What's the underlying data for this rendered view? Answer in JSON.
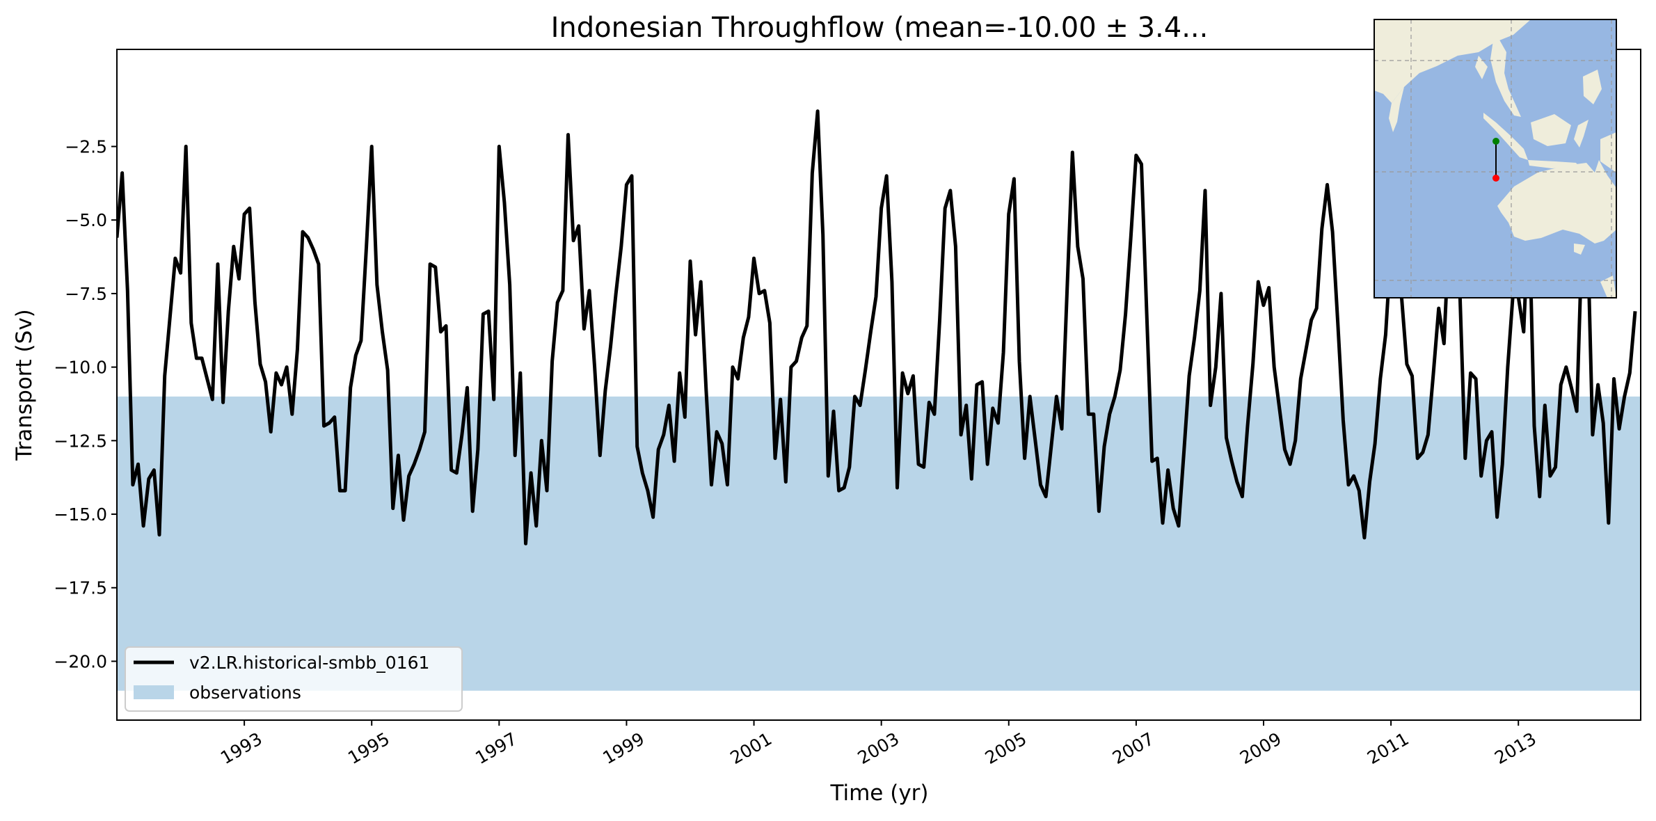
{
  "chart_data": {
    "type": "line",
    "title": "Indonesian Throughflow (mean=-10.00 ± 3.4...",
    "xlabel": "Time (yr)",
    "ylabel": "Transport (Sv)",
    "xlim": [
      1991.0,
      2014.92
    ],
    "ylim": [
      -22.0,
      0.8
    ],
    "x_ticks": [
      1993,
      1995,
      1997,
      1999,
      2001,
      2003,
      2005,
      2007,
      2009,
      2011,
      2013
    ],
    "x_tick_labels": [
      "1993",
      "1995",
      "1997",
      "1999",
      "2001",
      "2003",
      "2005",
      "2007",
      "2009",
      "2011",
      "2013"
    ],
    "y_ticks": [
      -2.5,
      -5.0,
      -7.5,
      -10.0,
      -12.5,
      -15.0,
      -17.5,
      -20.0
    ],
    "y_tick_labels": [
      "−2.5",
      "−5.0",
      "−7.5",
      "−10.0",
      "−12.5",
      "−15.0",
      "−17.5",
      "−20.0"
    ],
    "grid": false,
    "legend_position": "lower-left",
    "series": [
      {
        "name": "v2.LR.historical-smbb_0161",
        "type": "line",
        "color": "#000000",
        "x_start": 1991.0,
        "x_step": 0.08333,
        "values": [
          -5.6,
          -3.4,
          -7.4,
          -14.0,
          -13.3,
          -15.4,
          -13.8,
          -13.5,
          -15.7,
          -10.3,
          -8.3,
          -6.3,
          -6.8,
          -2.5,
          -8.5,
          -9.7,
          -9.7,
          -10.4,
          -11.1,
          -6.5,
          -11.2,
          -8.1,
          -5.9,
          -7.0,
          -4.8,
          -4.6,
          -7.8,
          -9.9,
          -10.5,
          -12.2,
          -10.2,
          -10.6,
          -10.0,
          -11.6,
          -9.4,
          -5.4,
          -5.6,
          -6.0,
          -6.5,
          -12.0,
          -11.9,
          -11.7,
          -14.2,
          -14.2,
          -10.7,
          -9.6,
          -9.1,
          -5.9,
          -2.5,
          -7.2,
          -8.8,
          -10.1,
          -14.8,
          -13.0,
          -15.2,
          -13.7,
          -13.3,
          -12.8,
          -12.2,
          -6.5,
          -6.6,
          -8.8,
          -8.6,
          -13.5,
          -13.6,
          -12.3,
          -10.7,
          -14.9,
          -12.8,
          -8.2,
          -8.1,
          -11.1,
          -2.5,
          -4.4,
          -7.2,
          -13.0,
          -10.2,
          -16.0,
          -13.6,
          -15.4,
          -12.5,
          -14.2,
          -9.8,
          -7.8,
          -7.4,
          -2.1,
          -5.7,
          -5.2,
          -8.7,
          -7.4,
          -10.0,
          -13.0,
          -10.8,
          -9.3,
          -7.5,
          -5.9,
          -3.8,
          -3.5,
          -12.7,
          -13.6,
          -14.2,
          -15.1,
          -12.8,
          -12.3,
          -11.3,
          -13.2,
          -10.2,
          -11.7,
          -6.4,
          -8.9,
          -7.1,
          -10.8,
          -14.0,
          -12.2,
          -12.6,
          -14.0,
          -10.0,
          -10.4,
          -9.0,
          -8.3,
          -6.3,
          -7.5,
          -7.4,
          -8.5,
          -13.1,
          -11.1,
          -13.9,
          -10.0,
          -9.8,
          -9.0,
          -8.6,
          -3.4,
          -1.3,
          -5.5,
          -13.7,
          -11.5,
          -14.2,
          -14.1,
          -13.4,
          -11.0,
          -11.3,
          -10.1,
          -8.8,
          -7.6,
          -4.6,
          -3.5,
          -7.1,
          -14.1,
          -10.2,
          -10.9,
          -10.3,
          -13.3,
          -13.4,
          -11.2,
          -11.6,
          -8.4,
          -4.6,
          -4.0,
          -5.9,
          -12.3,
          -11.3,
          -13.8,
          -10.6,
          -10.5,
          -13.3,
          -11.4,
          -11.9,
          -9.5,
          -4.8,
          -3.6,
          -9.8,
          -13.1,
          -11.0,
          -12.5,
          -14.0,
          -14.4,
          -12.7,
          -11.0,
          -12.1,
          -7.4,
          -2.7,
          -5.9,
          -7.0,
          -11.6,
          -11.6,
          -14.9,
          -12.7,
          -11.6,
          -11.0,
          -10.1,
          -8.2,
          -5.6,
          -2.8,
          -3.1,
          -8.2,
          -13.2,
          -13.1,
          -15.3,
          -13.5,
          -14.8,
          -15.4,
          -12.9,
          -10.3,
          -9.0,
          -7.4,
          -4.0,
          -11.3,
          -10.0,
          -7.5,
          -12.4,
          -13.2,
          -13.9,
          -14.4,
          -12.0,
          -9.9,
          -7.1,
          -7.9,
          -7.3,
          -10.0,
          -11.4,
          -12.8,
          -13.3,
          -12.5,
          -10.4,
          -9.4,
          -8.4,
          -8.0,
          -5.3,
          -3.8,
          -5.4,
          -8.5,
          -11.8,
          -14.0,
          -13.7,
          -14.2,
          -15.8,
          -13.9,
          -12.6,
          -10.4,
          -8.9,
          -6.0,
          -4.5,
          -7.6,
          -9.9,
          -10.3,
          -13.1,
          -12.9,
          -12.3,
          -10.2,
          -8.0,
          -9.2,
          -5.2,
          -3.0,
          -7.5,
          -13.1,
          -10.2,
          -10.4,
          -13.7,
          -12.5,
          -12.2,
          -15.1,
          -13.3,
          -10.0,
          -7.5,
          -7.6,
          -8.8,
          -4.6,
          -12.0,
          -14.4,
          -11.3,
          -13.7,
          -13.4,
          -10.6,
          -10.0,
          -10.7,
          -11.5,
          -5.6,
          -5.1,
          -12.3,
          -10.6,
          -11.9,
          -15.3,
          -10.4,
          -12.1,
          -11.0,
          -10.2,
          -8.1
        ]
      },
      {
        "name": "observations",
        "type": "band",
        "color": "#b9d5e8",
        "y_range": [
          -21.0,
          -11.0
        ]
      }
    ]
  },
  "inset_map": {
    "ocean_color": "#97b7e2",
    "land_color": "#efeddb",
    "section_start_color": "#008000",
    "section_end_color": "#ff0000"
  }
}
